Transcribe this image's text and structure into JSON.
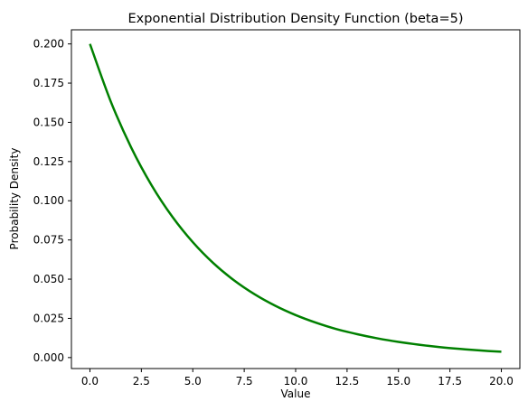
{
  "chart_data": {
    "type": "line",
    "title": "Exponential Distribution Density Function (beta=5)",
    "xlabel": "Value",
    "ylabel": "Probability Density",
    "xlim": [
      -0.9,
      20.9
    ],
    "ylim": [
      -0.007,
      0.209
    ],
    "x_ticks": [
      "0.0",
      "2.5",
      "5.0",
      "7.5",
      "10.0",
      "12.5",
      "15.0",
      "17.5",
      "20.0"
    ],
    "y_ticks": [
      "0.000",
      "0.025",
      "0.050",
      "0.075",
      "0.100",
      "0.125",
      "0.150",
      "0.175",
      "0.200"
    ],
    "grid": false,
    "legend": "none",
    "series": [
      {
        "color": "#008000",
        "x": [
          0,
          1,
          2,
          3,
          4,
          5,
          6,
          7,
          8,
          9,
          10,
          11,
          12,
          13,
          14,
          15,
          16,
          17,
          18,
          19,
          20
        ],
        "y": [
          0.2,
          0.1637,
          0.1341,
          0.1098,
          0.0899,
          0.0736,
          0.0602,
          0.0493,
          0.0404,
          0.0331,
          0.0271,
          0.0222,
          0.0181,
          0.0149,
          0.0122,
          0.01,
          0.0082,
          0.0067,
          0.0055,
          0.0045,
          0.0037
        ]
      }
    ]
  }
}
